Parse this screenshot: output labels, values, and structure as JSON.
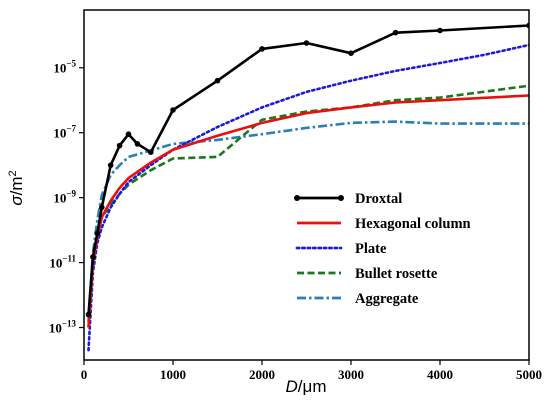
{
  "chart_data": {
    "type": "line",
    "xlabel": {
      "italic": "D",
      "rest": "/μm"
    },
    "ylabel": {
      "italic": "σ",
      "rest": "/m",
      "sup": "2"
    },
    "xlim": [
      0,
      5000
    ],
    "ylim": [
      1e-14,
      0.0006
    ],
    "yscale": "log",
    "x_ticks": [
      "0",
      "1000",
      "2000",
      "3000",
      "4000",
      "5000"
    ],
    "x_tick_values": [
      0,
      1000,
      2000,
      3000,
      4000,
      5000
    ],
    "y_ticks": [
      {
        "base": "10",
        "exp": "−13",
        "value": 1e-13
      },
      {
        "base": "10",
        "exp": "−11",
        "value": 1e-11
      },
      {
        "base": "10",
        "exp": "−9",
        "value": 1e-09
      },
      {
        "base": "10",
        "exp": "−7",
        "value": 1e-07
      },
      {
        "base": "10",
        "exp": "−5",
        "value": 1e-05
      }
    ],
    "legend_position": "lower-right",
    "series": [
      {
        "name": "Droxtal",
        "color": "#000000",
        "style": "solid-markers",
        "x": [
          50,
          100,
          150,
          200,
          300,
          400,
          500,
          600,
          750,
          1000,
          1500,
          2000,
          2500,
          3000,
          3500,
          4000,
          5000
        ],
        "y": [
          2.5e-13,
          1.5e-11,
          8e-11,
          5e-10,
          1e-08,
          4e-08,
          9e-08,
          4.5e-08,
          2.5e-08,
          5e-07,
          4e-06,
          3.8e-05,
          5.8e-05,
          2.8e-05,
          0.00012,
          0.00014,
          0.0002
        ]
      },
      {
        "name": "Hexagonal column",
        "color": "#e8100f",
        "style": "solid",
        "x": [
          50,
          100,
          150,
          200,
          300,
          400,
          500,
          750,
          1000,
          1500,
          2000,
          2500,
          3000,
          3500,
          4000,
          5000
        ],
        "y": [
          1e-13,
          1e-11,
          6e-11,
          2.5e-10,
          8e-10,
          2e-09,
          4e-09,
          1.2e-08,
          3e-08,
          8e-08,
          2e-07,
          4e-07,
          6e-07,
          8.5e-07,
          1e-06,
          1.4e-06
        ]
      },
      {
        "name": "Plate",
        "color": "#1c1cd8",
        "style": "dotted",
        "x": [
          50,
          100,
          150,
          200,
          300,
          400,
          500,
          750,
          1000,
          1500,
          2000,
          2500,
          3000,
          3500,
          4000,
          4500,
          5000
        ],
        "y": [
          2e-14,
          5e-12,
          4e-11,
          1.2e-10,
          5e-10,
          1.3e-09,
          3e-09,
          1e-08,
          3e-08,
          1.5e-07,
          6e-07,
          1.8e-06,
          4e-06,
          8e-06,
          1.4e-05,
          2.5e-05,
          5e-05
        ]
      },
      {
        "name": "Bullet rosette",
        "color": "#1a7a1a",
        "style": "dashed",
        "x": [
          50,
          100,
          150,
          200,
          300,
          400,
          500,
          750,
          1000,
          1500,
          2000,
          2500,
          3000,
          3500,
          4000,
          5000
        ],
        "y": [
          1e-13,
          1.2e-11,
          7e-11,
          2.5e-10,
          6e-10,
          1.3e-09,
          2.5e-09,
          7e-09,
          1.6e-08,
          1.8e-08,
          2.5e-07,
          4.5e-07,
          6e-07,
          1e-06,
          1.2e-06,
          2.8e-06
        ]
      },
      {
        "name": "Aggregate",
        "color": "#2a7fb8",
        "style": "dashdot",
        "x": [
          50,
          100,
          150,
          200,
          300,
          400,
          500,
          750,
          1000,
          1500,
          2000,
          2500,
          3000,
          3500,
          4000,
          5000
        ],
        "y": [
          1.5e-13,
          2e-11,
          2e-10,
          1.2e-09,
          5e-09,
          1e-08,
          1.8e-08,
          2.8e-08,
          4.5e-08,
          6e-08,
          9e-08,
          1.4e-07,
          2e-07,
          2.2e-07,
          1.9e-07,
          1.9e-07
        ]
      }
    ]
  }
}
